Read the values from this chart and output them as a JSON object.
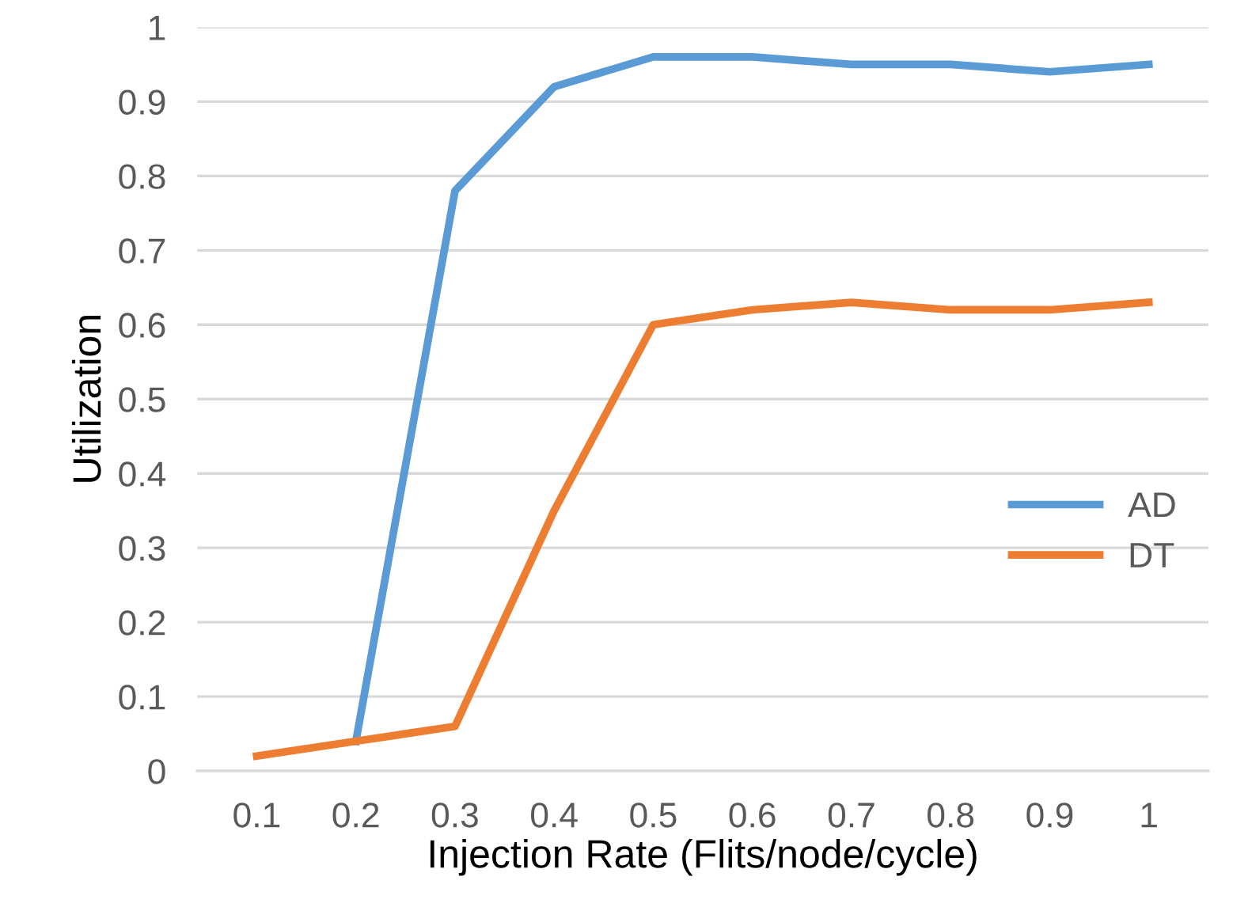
{
  "chart_data": {
    "type": "line",
    "xlabel": "Injection Rate (Flits/node/cycle)",
    "ylabel": "Utilization",
    "categories": [
      "0.1",
      "0.2",
      "0.3",
      "0.4",
      "0.5",
      "0.6",
      "0.7",
      "0.8",
      "0.9",
      "1"
    ],
    "series": [
      {
        "name": "AD",
        "color": "#5b9bd5",
        "values": [
          null,
          0.04,
          0.78,
          0.92,
          0.96,
          0.96,
          0.95,
          0.95,
          0.94,
          0.95
        ]
      },
      {
        "name": "DT",
        "color": "#ed7d31",
        "values": [
          0.02,
          0.04,
          0.06,
          0.35,
          0.6,
          0.62,
          0.63,
          0.62,
          0.62,
          0.63
        ]
      }
    ],
    "ylim": [
      0,
      1
    ],
    "yticks": [
      0,
      0.1,
      0.2,
      0.3,
      0.4,
      0.5,
      0.6,
      0.7,
      0.8,
      0.9,
      1
    ],
    "grid": "y",
    "legend": "right",
    "marker": "none",
    "line_style": "solid"
  }
}
